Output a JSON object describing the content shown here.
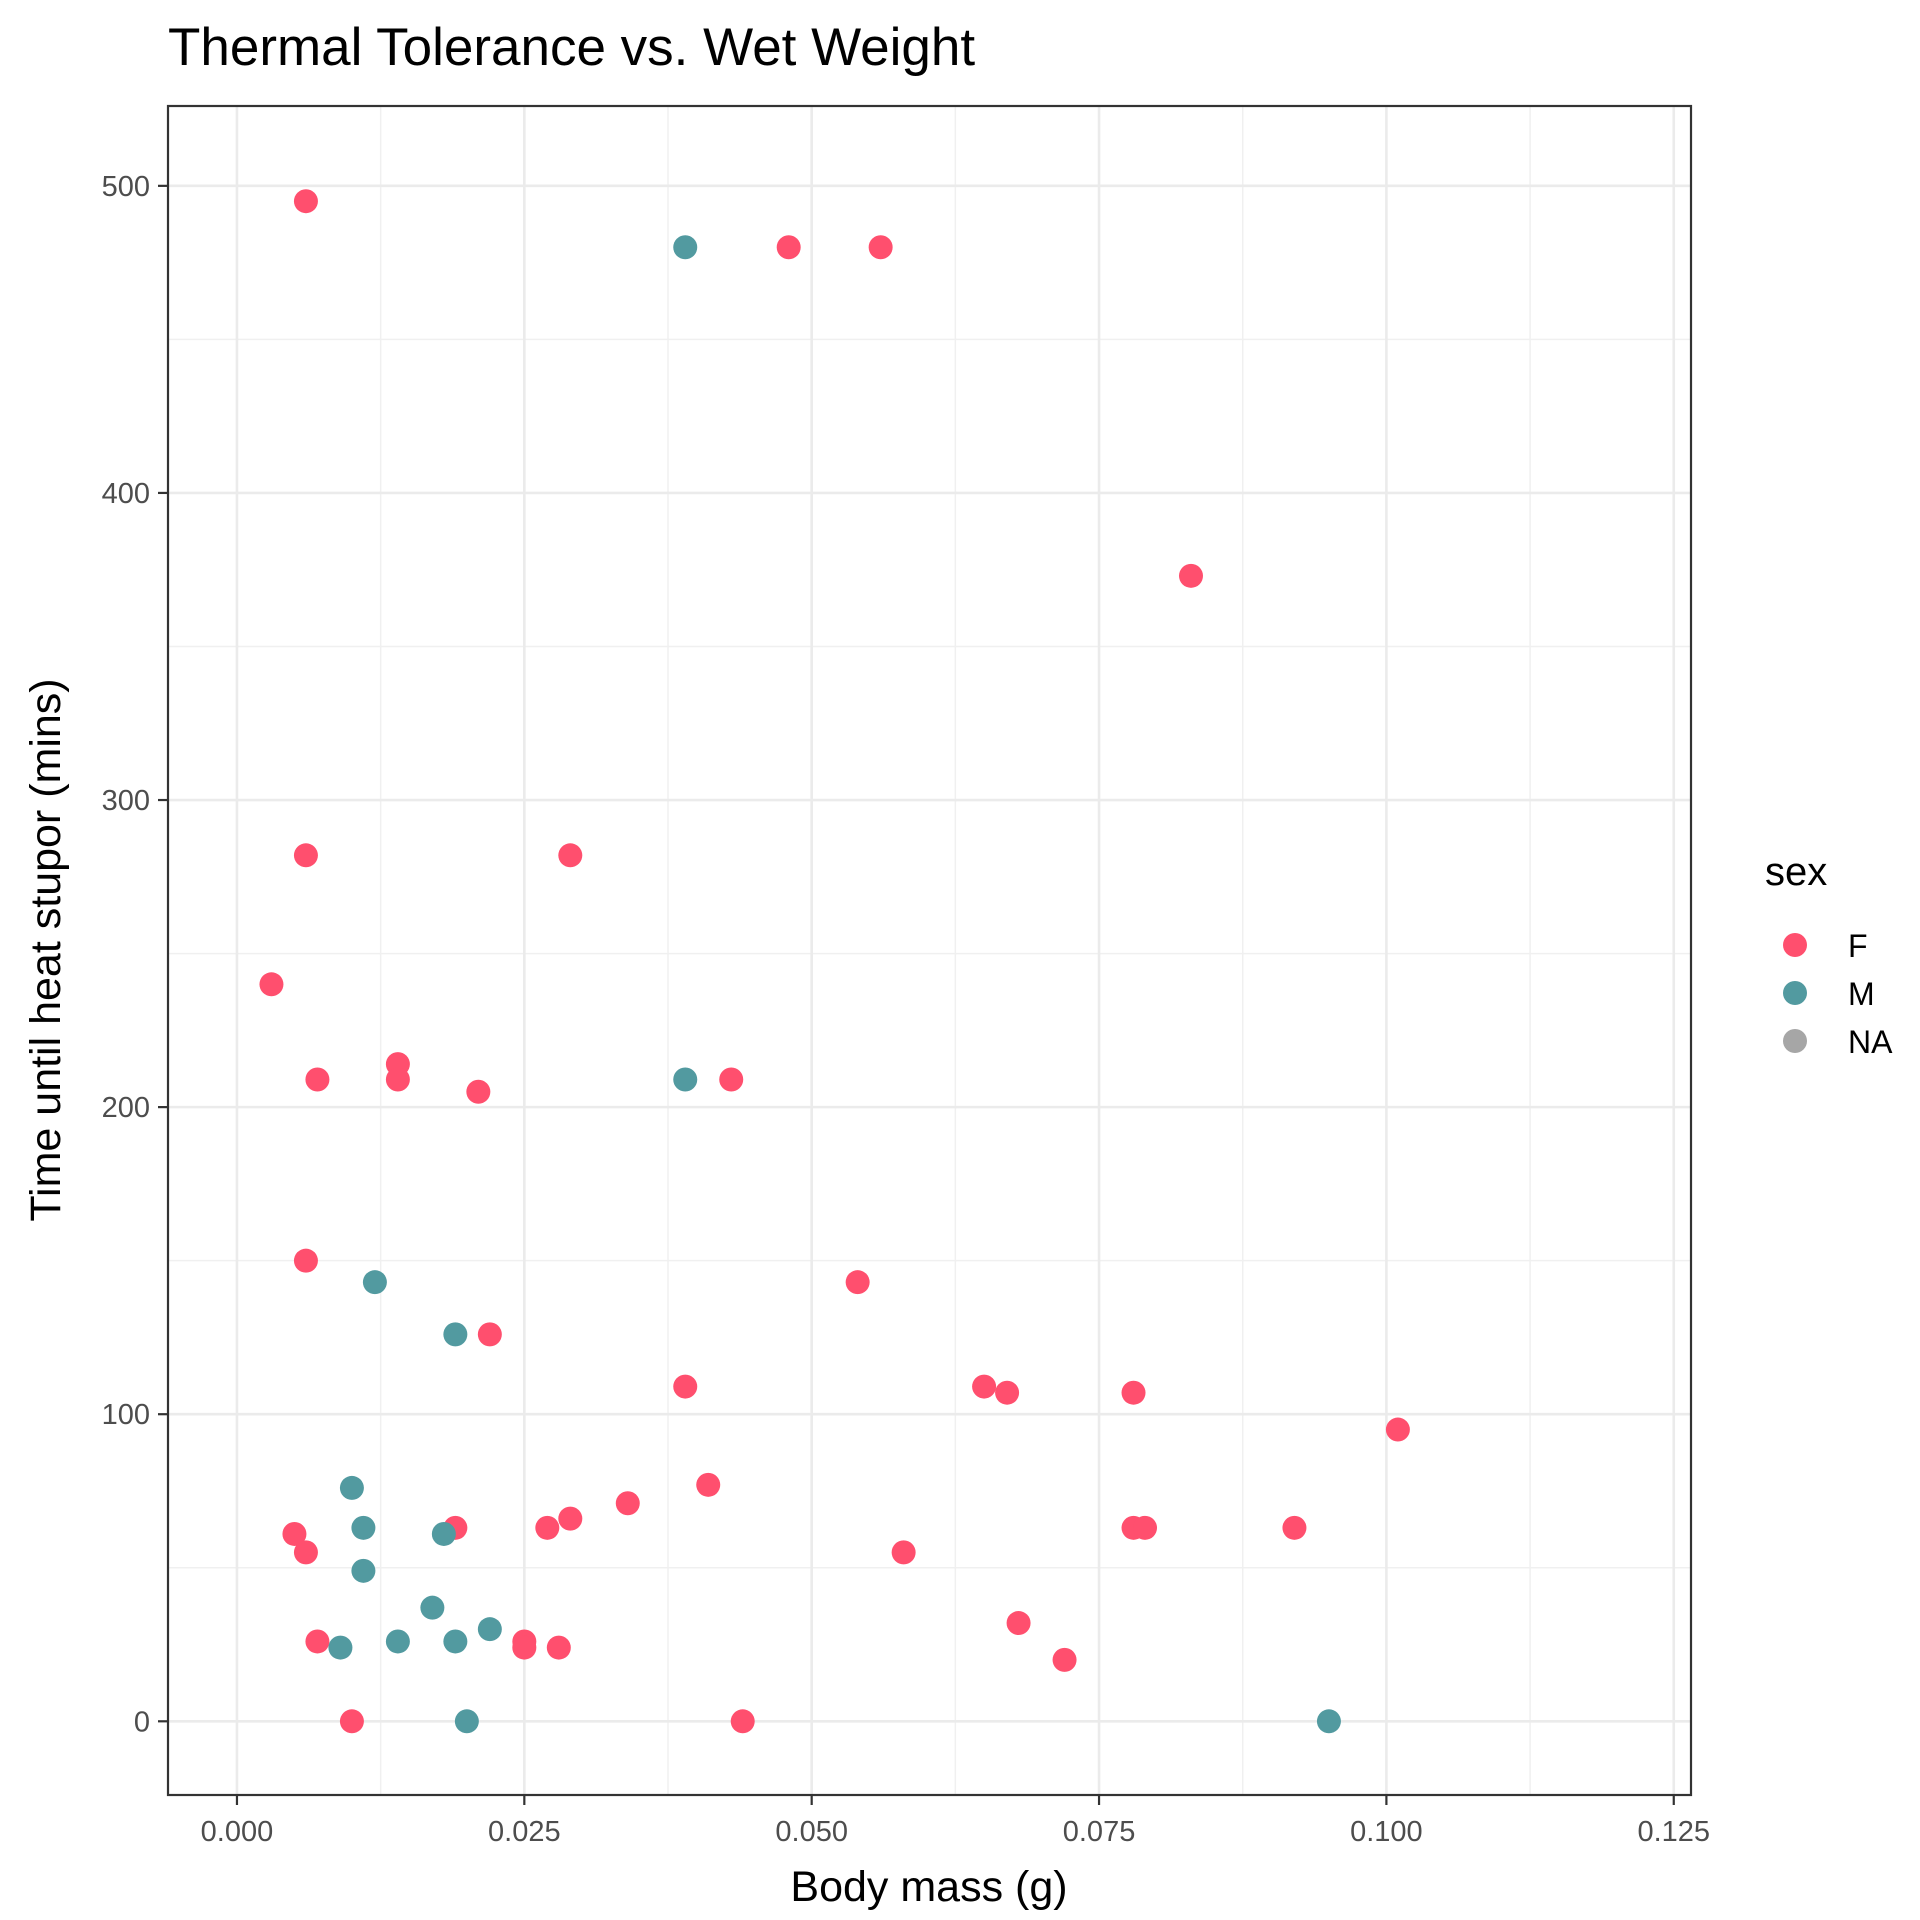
{
  "chart_data": {
    "type": "scatter",
    "title": "Thermal Tolerance vs. Wet Weight",
    "xlabel": "Body mass (g)",
    "ylabel": "Time until heat stupor (mins)",
    "xlim": [
      -0.006,
      0.1265
    ],
    "ylim": [
      -24,
      526
    ],
    "x_ticks": [
      0.0,
      0.025,
      0.05,
      0.075,
      0.1,
      0.125
    ],
    "x_tick_labels": [
      "0.000",
      "0.025",
      "0.050",
      "0.075",
      "0.100",
      "0.125"
    ],
    "y_ticks": [
      0,
      100,
      200,
      300,
      400,
      500
    ],
    "y_tick_labels": [
      "0",
      "100",
      "200",
      "300",
      "400",
      "500"
    ],
    "grid": true,
    "legend": {
      "title": "sex",
      "position": "right",
      "entries": [
        {
          "label": "F",
          "color": "#ff4f6e"
        },
        {
          "label": "M",
          "color": "#529aa0"
        },
        {
          "label": "NA",
          "color": "#a6a6a6"
        }
      ]
    },
    "series": [
      {
        "name": "F",
        "color": "#ff4f6e",
        "points": [
          [
            0.006,
            495
          ],
          [
            0.048,
            480
          ],
          [
            0.056,
            480
          ],
          [
            0.083,
            373
          ],
          [
            0.006,
            282
          ],
          [
            0.029,
            282
          ],
          [
            0.003,
            240
          ],
          [
            0.007,
            209
          ],
          [
            0.014,
            214
          ],
          [
            0.014,
            209
          ],
          [
            0.021,
            205
          ],
          [
            0.043,
            209
          ],
          [
            0.006,
            150
          ],
          [
            0.054,
            143
          ],
          [
            0.022,
            126
          ],
          [
            0.039,
            109
          ],
          [
            0.065,
            109
          ],
          [
            0.067,
            107
          ],
          [
            0.078,
            107
          ],
          [
            0.101,
            95
          ],
          [
            0.041,
            77
          ],
          [
            0.034,
            71
          ],
          [
            0.029,
            66
          ],
          [
            0.027,
            63
          ],
          [
            0.019,
            63
          ],
          [
            0.078,
            63
          ],
          [
            0.079,
            63
          ],
          [
            0.092,
            63
          ],
          [
            0.005,
            61
          ],
          [
            0.006,
            55
          ],
          [
            0.058,
            55
          ],
          [
            0.068,
            32
          ],
          [
            0.007,
            26
          ],
          [
            0.025,
            26
          ],
          [
            0.025,
            24
          ],
          [
            0.028,
            24
          ],
          [
            0.072,
            20
          ],
          [
            0.01,
            0
          ],
          [
            0.044,
            0
          ]
        ]
      },
      {
        "name": "M",
        "color": "#529aa0",
        "points": [
          [
            0.039,
            480
          ],
          [
            0.039,
            209
          ],
          [
            0.012,
            143
          ],
          [
            0.019,
            126
          ],
          [
            0.01,
            76
          ],
          [
            0.011,
            63
          ],
          [
            0.018,
            61
          ],
          [
            0.011,
            49
          ],
          [
            0.017,
            37
          ],
          [
            0.022,
            30
          ],
          [
            0.014,
            26
          ],
          [
            0.019,
            26
          ],
          [
            0.009,
            24
          ],
          [
            0.02,
            0
          ],
          [
            0.095,
            0
          ]
        ]
      }
    ]
  }
}
